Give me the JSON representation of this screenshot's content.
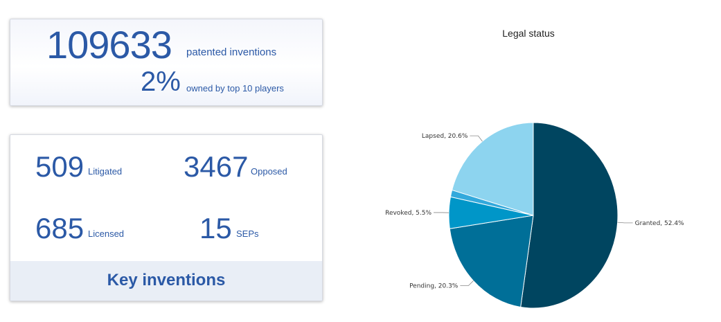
{
  "summary": {
    "total_value": "109633",
    "total_label": "patented inventions",
    "share_value": "2%",
    "share_label": "owned by top 10 players"
  },
  "stats": {
    "litigated_value": "509",
    "litigated_label": "Litigated",
    "opposed_value": "3467",
    "opposed_label": "Opposed",
    "licensed_value": "685",
    "licensed_label": "Licensed",
    "seps_value": "15",
    "seps_label": "SEPs",
    "key_label": "Key inventions"
  },
  "colors": {
    "accent": "#2b59a6",
    "granted": "#004560",
    "pending": "#006f98",
    "revoked": "#0096c8",
    "other": "#33a9dc",
    "lapsed": "#8dd4ef"
  },
  "chart_data": {
    "type": "pie",
    "title": "Legal status",
    "slices": [
      {
        "name": "Granted",
        "value": 52.4,
        "label": "Granted, 52.4%",
        "color": "#004560"
      },
      {
        "name": "Pending",
        "value": 20.3,
        "label": "Pending, 20.3%",
        "color": "#006f98"
      },
      {
        "name": "Revoked",
        "value": 5.5,
        "label": "Revoked, 5.5%",
        "color": "#0096c8"
      },
      {
        "name": "",
        "value": 1.2,
        "label": "",
        "color": "#33a9dc"
      },
      {
        "name": "Lapsed",
        "value": 20.6,
        "label": "Lapsed, 20.6%",
        "color": "#8dd4ef"
      }
    ]
  }
}
